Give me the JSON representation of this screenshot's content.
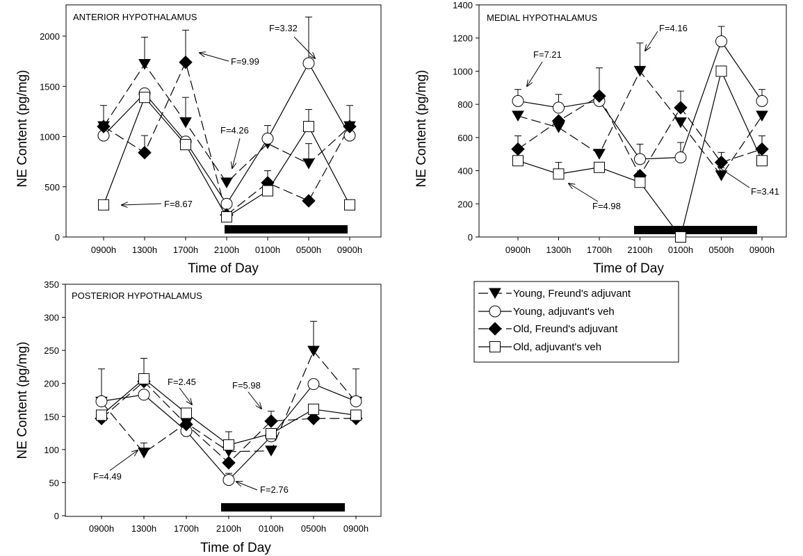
{
  "chart_data": [
    {
      "type": "line",
      "title": "ANTERIOR HYPOTHALAMUS",
      "xlabel": "Time of Day",
      "ylabel": "NE Content (pg/mg)",
      "categories": [
        "0900h",
        "1300h",
        "1700h",
        "2100h",
        "0100h",
        "0500h",
        "0900h"
      ],
      "ylim": [
        0,
        2000
      ],
      "yticks": [
        0,
        500,
        1000,
        1500,
        2000
      ],
      "grid": false,
      "dark_period": [
        "2100h",
        "0900h"
      ],
      "series": [
        {
          "name": "Young, Freund's adjuvant",
          "values": [
            1100,
            1720,
            1140,
            540,
            930,
            730,
            1100
          ],
          "error": [
            210,
            270,
            250,
            0,
            0,
            200,
            210
          ]
        },
        {
          "name": "Young, adjuvant's veh",
          "values": [
            1010,
            1430,
            950,
            330,
            980,
            1730,
            1010
          ],
          "error": [
            0,
            0,
            0,
            0,
            130,
            460,
            0
          ]
        },
        {
          "name": "Old, Freund's adjuvant",
          "values": [
            1100,
            840,
            1740,
            220,
            540,
            360,
            1100
          ],
          "error": [
            0,
            170,
            320,
            0,
            120,
            0,
            0
          ]
        },
        {
          "name": "Old, adjuvant's veh",
          "values": [
            320,
            1390,
            920,
            200,
            460,
            1100,
            320
          ],
          "error": [
            0,
            0,
            0,
            0,
            0,
            170,
            0
          ]
        }
      ],
      "annotations": [
        "F=9.99",
        "F=3.32",
        "F=4.26",
        "F=8.67"
      ]
    },
    {
      "type": "line",
      "title": "MEDIAL HYPOTHALAMUS",
      "xlabel": "Time of Day",
      "ylabel": "NE Content (pg/mg)",
      "categories": [
        "0900h",
        "1300h",
        "1700h",
        "2100h",
        "0100h",
        "0500h",
        "0900h"
      ],
      "ylim": [
        0,
        1400
      ],
      "yticks": [
        0,
        200,
        400,
        600,
        800,
        1000,
        1200,
        1400
      ],
      "grid": false,
      "dark_period": [
        "2100h",
        "0900h"
      ],
      "series": [
        {
          "name": "Young, Freund's adjuvant",
          "values": [
            730,
            660,
            500,
            1000,
            690,
            370,
            730
          ],
          "error": [
            0,
            0,
            0,
            170,
            0,
            0,
            0
          ]
        },
        {
          "name": "Young, adjuvant's veh",
          "values": [
            820,
            780,
            820,
            470,
            480,
            1180,
            820
          ],
          "error": [
            70,
            80,
            0,
            90,
            90,
            90,
            70
          ]
        },
        {
          "name": "Old, Freund's adjuvant",
          "values": [
            530,
            700,
            850,
            370,
            780,
            450,
            530
          ],
          "error": [
            80,
            0,
            170,
            0,
            100,
            60,
            80
          ]
        },
        {
          "name": "Old, adjuvant's veh",
          "values": [
            460,
            380,
            420,
            330,
            0,
            1000,
            460
          ],
          "error": [
            0,
            70,
            0,
            0,
            0,
            0,
            0
          ]
        }
      ],
      "annotations": [
        "F=7.21",
        "F=4.16",
        "F=4.98",
        "F=3.41"
      ]
    },
    {
      "type": "line",
      "title": "POSTERIOR HYPOTHALAMUS",
      "xlabel": "Time of Day",
      "ylabel": "NE Content (pg/mg)",
      "categories": [
        "0900h",
        "1300h",
        "1700h",
        "2100h",
        "0100h",
        "0500h",
        "0900h"
      ],
      "ylim": [
        0,
        350
      ],
      "yticks": [
        0,
        50,
        100,
        150,
        200,
        250,
        300,
        350
      ],
      "grid": false,
      "dark_period": [
        "2100h",
        "0900h"
      ],
      "series": [
        {
          "name": "Young, Freund's adjuvant",
          "values": [
            172,
            95,
            140,
            97,
            98,
            249,
            172
          ],
          "error": [
            50,
            15,
            0,
            0,
            0,
            45,
            50
          ]
        },
        {
          "name": "Young, adjuvant's veh",
          "values": [
            173,
            183,
            128,
            54,
            120,
            199,
            173
          ],
          "error": [
            0,
            0,
            0,
            10,
            0,
            0,
            0
          ]
        },
        {
          "name": "Old, Freund's adjuvant",
          "values": [
            147,
            203,
            138,
            80,
            143,
            147,
            147
          ],
          "error": [
            0,
            35,
            0,
            0,
            15,
            0,
            0
          ]
        },
        {
          "name": "Old, adjuvant's veh",
          "values": [
            152,
            207,
            155,
            107,
            124,
            161,
            152
          ],
          "error": [
            0,
            0,
            0,
            20,
            0,
            0,
            0
          ]
        }
      ],
      "annotations": [
        "F=2.45",
        "F=5.98",
        "F=4.49",
        "F=2.76"
      ]
    }
  ],
  "legend": {
    "position": "right-middle",
    "entries": [
      {
        "label": "Young, Freund's adjuvant",
        "marker": "triangle-down-filled",
        "dash": "long"
      },
      {
        "label": "Young, adjuvant's veh",
        "marker": "circle-open",
        "dash": "solid"
      },
      {
        "label": "Old, Freund's adjuvant",
        "marker": "diamond-filled",
        "dash": "long"
      },
      {
        "label": "Old, adjuvant's veh",
        "marker": "square-open",
        "dash": "solid"
      }
    ]
  }
}
